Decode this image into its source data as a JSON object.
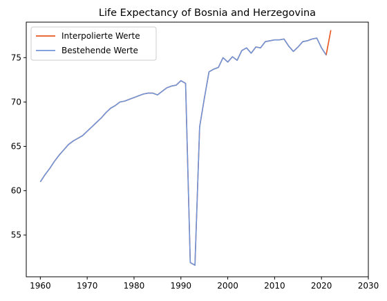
{
  "chart_data": {
    "type": "line",
    "title": "Life Expectancy of Bosnia and Herzegovina",
    "xlabel": "",
    "ylabel": "",
    "xlim": [
      1957,
      2030
    ],
    "ylim": [
      50.3,
      79.0
    ],
    "xticks": [
      1960,
      1970,
      1980,
      1990,
      2000,
      2010,
      2020,
      2030
    ],
    "yticks": [
      55,
      60,
      65,
      70,
      75
    ],
    "grid": false,
    "legend_position": "top-left",
    "series": [
      {
        "name": "Interpolierte Werte",
        "color": "#e8541e",
        "x": [
          1960,
          1961,
          1962,
          1963,
          1964,
          1965,
          1966,
          1967,
          1968,
          1969,
          1970,
          1971,
          1972,
          1973,
          1974,
          1975,
          1976,
          1977,
          1978,
          1979,
          1980,
          1981,
          1982,
          1983,
          1984,
          1985,
          1986,
          1987,
          1988,
          1989,
          1990,
          1991,
          1992,
          1993,
          1994,
          1995,
          1996,
          1997,
          1998,
          1999,
          2000,
          2001,
          2002,
          2003,
          2004,
          2005,
          2006,
          2007,
          2008,
          2009,
          2010,
          2011,
          2012,
          2013,
          2014,
          2015,
          2016,
          2017,
          2018,
          2019,
          2020,
          2021,
          2022
        ],
        "y": [
          61.0,
          61.8,
          62.5,
          63.3,
          64.0,
          64.6,
          65.2,
          65.6,
          65.9,
          66.2,
          66.7,
          67.2,
          67.7,
          68.2,
          68.8,
          69.3,
          69.6,
          70.0,
          70.1,
          70.3,
          70.5,
          70.7,
          70.9,
          71.0,
          71.0,
          70.8,
          71.2,
          71.6,
          71.8,
          71.9,
          72.4,
          72.1,
          51.9,
          51.6,
          67.2,
          70.4,
          73.4,
          73.7,
          73.9,
          75.0,
          74.5,
          75.1,
          74.7,
          75.8,
          76.1,
          75.5,
          76.2,
          76.1,
          76.8,
          76.9,
          77.0,
          77.0,
          77.1,
          76.3,
          75.7,
          76.2,
          76.8,
          76.9,
          77.1,
          77.2,
          76.1,
          75.3,
          78.1
        ]
      },
      {
        "name": "Bestehende Werte",
        "color": "#6f94d8",
        "x": [
          1960,
          1961,
          1962,
          1963,
          1964,
          1965,
          1966,
          1967,
          1968,
          1969,
          1970,
          1971,
          1972,
          1973,
          1974,
          1975,
          1976,
          1977,
          1978,
          1979,
          1980,
          1981,
          1982,
          1983,
          1984,
          1985,
          1986,
          1987,
          1988,
          1989,
          1990,
          1991,
          1992,
          1993,
          1994,
          1995,
          1996,
          1997,
          1998,
          1999,
          2000,
          2001,
          2002,
          2003,
          2004,
          2005,
          2006,
          2007,
          2008,
          2009,
          2010,
          2011,
          2012,
          2013,
          2014,
          2015,
          2016,
          2017,
          2018,
          2019,
          2020,
          2021
        ],
        "y": [
          61.0,
          61.8,
          62.5,
          63.3,
          64.0,
          64.6,
          65.2,
          65.6,
          65.9,
          66.2,
          66.7,
          67.2,
          67.7,
          68.2,
          68.8,
          69.3,
          69.6,
          70.0,
          70.1,
          70.3,
          70.5,
          70.7,
          70.9,
          71.0,
          71.0,
          70.8,
          71.2,
          71.6,
          71.8,
          71.9,
          72.4,
          72.1,
          51.9,
          51.6,
          67.2,
          70.4,
          73.4,
          73.7,
          73.9,
          75.0,
          74.5,
          75.1,
          74.7,
          75.8,
          76.1,
          75.5,
          76.2,
          76.1,
          76.8,
          76.9,
          77.0,
          77.0,
          77.1,
          76.3,
          75.7,
          76.2,
          76.8,
          76.9,
          77.1,
          77.2,
          76.1,
          75.3
        ]
      }
    ]
  }
}
